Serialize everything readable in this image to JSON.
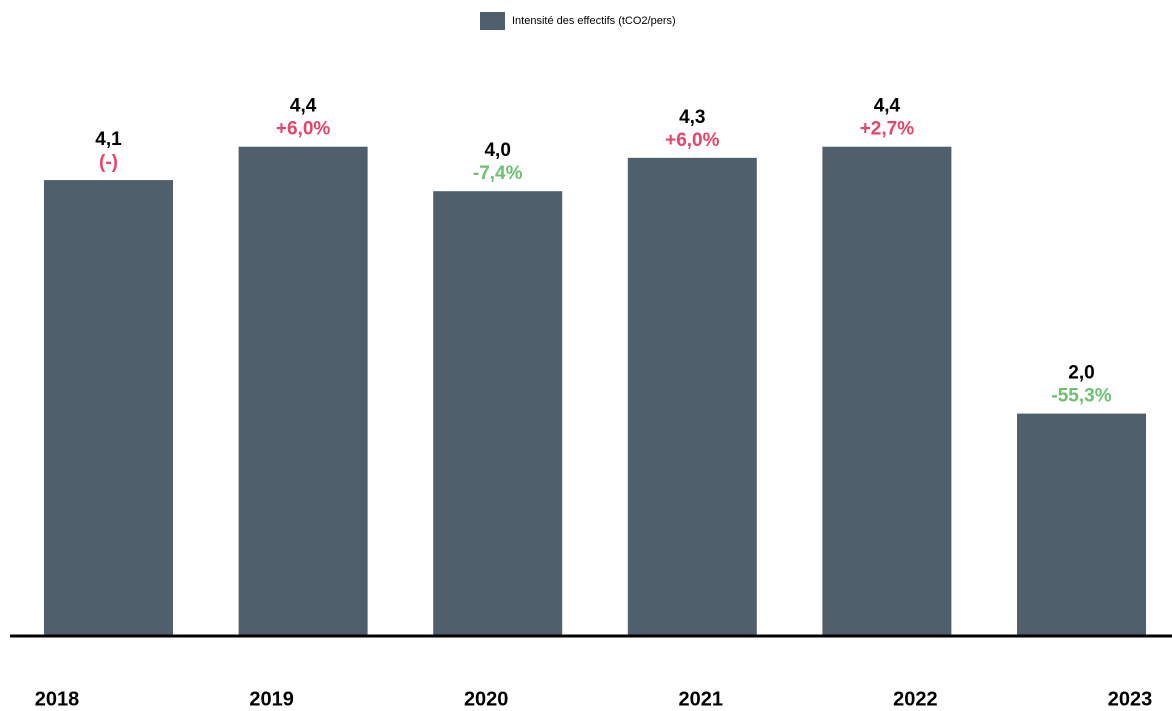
{
  "chart_data": {
    "type": "bar",
    "categories": [
      "2018",
      "2019",
      "2020",
      "2021",
      "2022",
      "2023"
    ],
    "series": [
      {
        "name": "Intensité des effectifs (tCO2/pers)",
        "color": "#505f6c",
        "values": [
          4.1,
          4.4,
          4.0,
          4.3,
          4.4,
          2.0
        ],
        "value_labels": [
          "4,1",
          "4,4",
          "4,0",
          "4,3",
          "4,4",
          "2,0"
        ]
      }
    ],
    "changes": [
      "(-)",
      "+6,0%",
      "-7,4%",
      "+6,0%",
      "+2,7%",
      "-55,3%"
    ],
    "change_colors": [
      "#e8446a",
      "#e8446a",
      "#6cc070",
      "#e8446a",
      "#e8446a",
      "#6cc070"
    ],
    "ylim": [
      0,
      5
    ],
    "legend": "top"
  }
}
